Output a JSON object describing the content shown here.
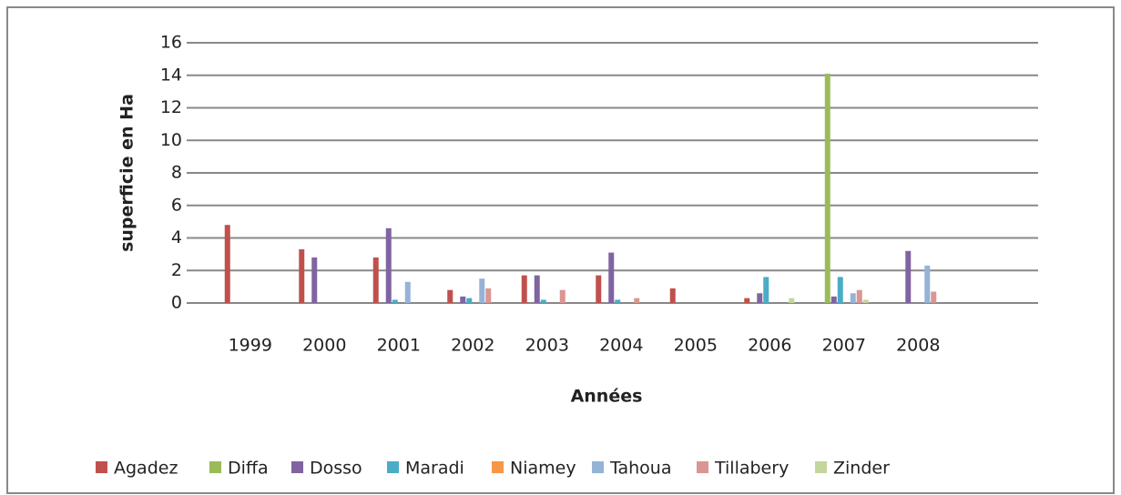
{
  "chart_data": {
    "type": "bar",
    "x_label": "Années",
    "y_label": "superficie en Ha",
    "categories": [
      "1999",
      "2000",
      "2001",
      "2002",
      "2003",
      "2004",
      "2005",
      "2006",
      "2007",
      "2008"
    ],
    "series": [
      {
        "name": "Agadez",
        "color": "#c0504d",
        "values": [
          4.8,
          3.3,
          2.8,
          0.8,
          1.7,
          1.7,
          0.9,
          0.3,
          0,
          0
        ]
      },
      {
        "name": "Diffa",
        "color": "#9bbb59",
        "values": [
          0,
          0,
          0,
          0,
          0,
          0,
          0,
          0,
          14.1,
          0
        ]
      },
      {
        "name": "Dosso",
        "color": "#8064a2",
        "values": [
          0,
          2.8,
          4.6,
          0.4,
          1.7,
          3.1,
          0,
          0.6,
          0.4,
          3.2
        ]
      },
      {
        "name": "Maradi",
        "color": "#4bacc6",
        "values": [
          0,
          0,
          0.2,
          0.3,
          0.2,
          0.2,
          0,
          1.6,
          1.6,
          0
        ]
      },
      {
        "name": "Niamey",
        "color": "#f79646",
        "values": [
          0,
          0,
          0,
          0,
          0,
          0,
          0,
          0,
          0,
          0
        ]
      },
      {
        "name": "Tahoua",
        "color": "#95b3d7",
        "values": [
          0,
          0,
          1.3,
          1.5,
          0,
          0,
          0,
          0,
          0.6,
          2.3
        ]
      },
      {
        "name": "Tillabery",
        "color": "#d99694",
        "values": [
          0,
          0,
          0,
          0.9,
          0.8,
          0.3,
          0,
          0,
          0.8,
          0.7
        ]
      },
      {
        "name": "Zinder",
        "color": "#c3d69b",
        "values": [
          0,
          0,
          0,
          0,
          0,
          0,
          0,
          0.3,
          0.2,
          0
        ]
      }
    ],
    "ylim": [
      0,
      16
    ],
    "yticks": [
      0,
      2,
      4,
      6,
      8,
      10,
      12,
      14,
      16
    ],
    "grid": true,
    "legend": "bottom"
  }
}
